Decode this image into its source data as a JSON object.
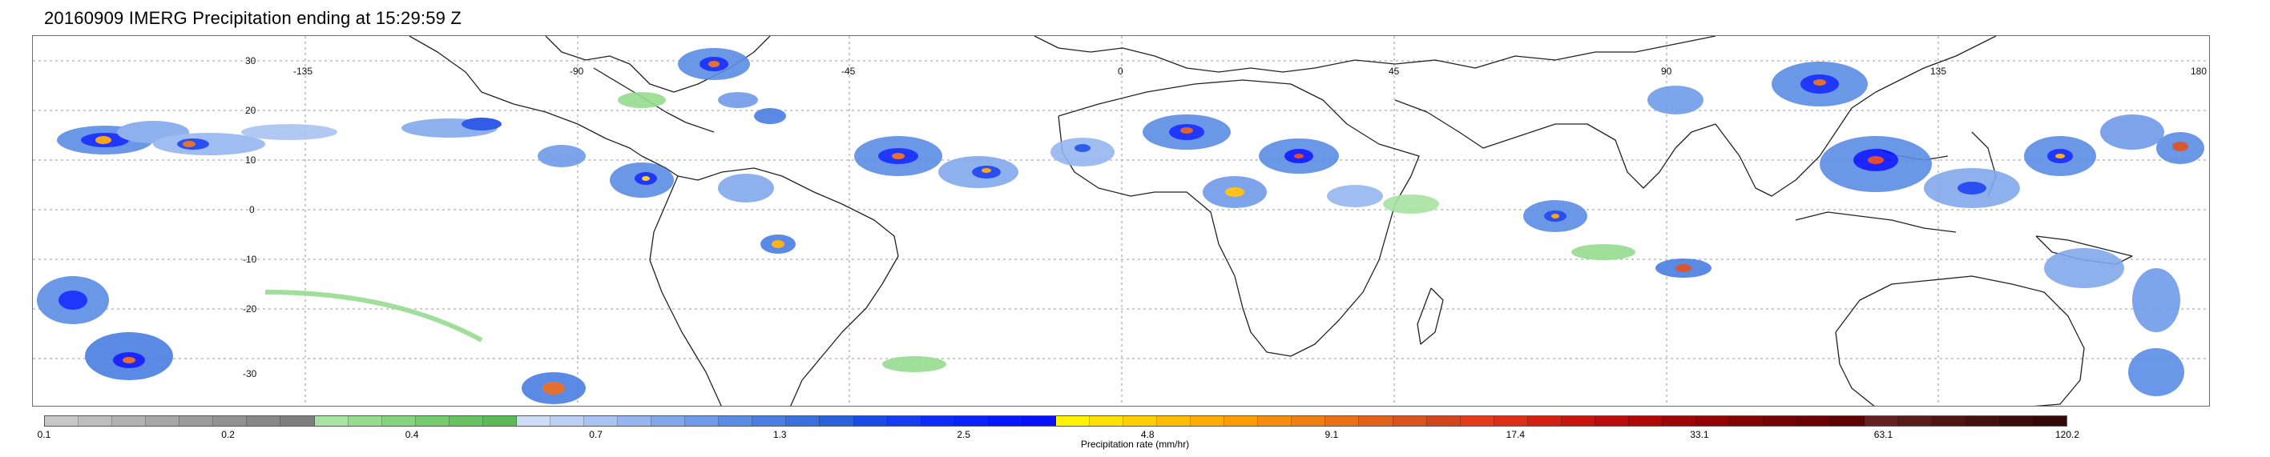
{
  "title": "20160909 IMERG Precipitation ending at 15:29:59 Z",
  "map": {
    "lon_labels": [
      "-135",
      "-90",
      "-45",
      "0",
      "45",
      "90",
      "135",
      "180"
    ],
    "lat_labels": [
      "30",
      "20",
      "10",
      "0",
      "-10",
      "-20",
      "-30"
    ],
    "grid_color": "#9a9a9a",
    "coast_color": "#222222",
    "lat_range": [
      -40,
      35
    ],
    "lon_range": [
      -180,
      180
    ]
  },
  "colorbar": {
    "label": "Precipitation rate (mm/hr)",
    "ticks": [
      "0.1",
      "0.2",
      "0.4",
      "0.7",
      "1.3",
      "2.5",
      "4.8",
      "9.1",
      "17.4",
      "33.1",
      "63.1",
      "120.2"
    ],
    "colors": [
      "#c8c8c8",
      "#bdbdbd",
      "#b2b2b2",
      "#a7a7a7",
      "#9c9c9c",
      "#929292",
      "#888888",
      "#7e7e7e",
      "#a7e3a1",
      "#95dc8f",
      "#84d47e",
      "#75cc6e",
      "#67c360",
      "#5bba54",
      "#cfdcf7",
      "#bcd0f5",
      "#a9c3f2",
      "#95b6ef",
      "#82a8ec",
      "#6f9be9",
      "#5b8ce5",
      "#4a7ee3",
      "#3a6fde",
      "#2a60d9",
      "#1b4be6",
      "#143cf0",
      "#0c2cfa",
      "#0722ff",
      "#0618ff",
      "#0410ff",
      "#fff300",
      "#ffe100",
      "#ffcf00",
      "#ffbd00",
      "#ffab00",
      "#ff9c00",
      "#f78d0c",
      "#f07f12",
      "#e97015",
      "#e16219",
      "#da541c",
      "#d2461f",
      "#e53a1a",
      "#de2d16",
      "#d42012",
      "#c9140e",
      "#bd0a0a",
      "#b00707",
      "#a00505",
      "#920404",
      "#840303",
      "#760202",
      "#6a0202",
      "#5e0202",
      "#662222",
      "#5a1b1b",
      "#4f1515",
      "#451010",
      "#3c0b0b",
      "#330707"
    ]
  }
}
